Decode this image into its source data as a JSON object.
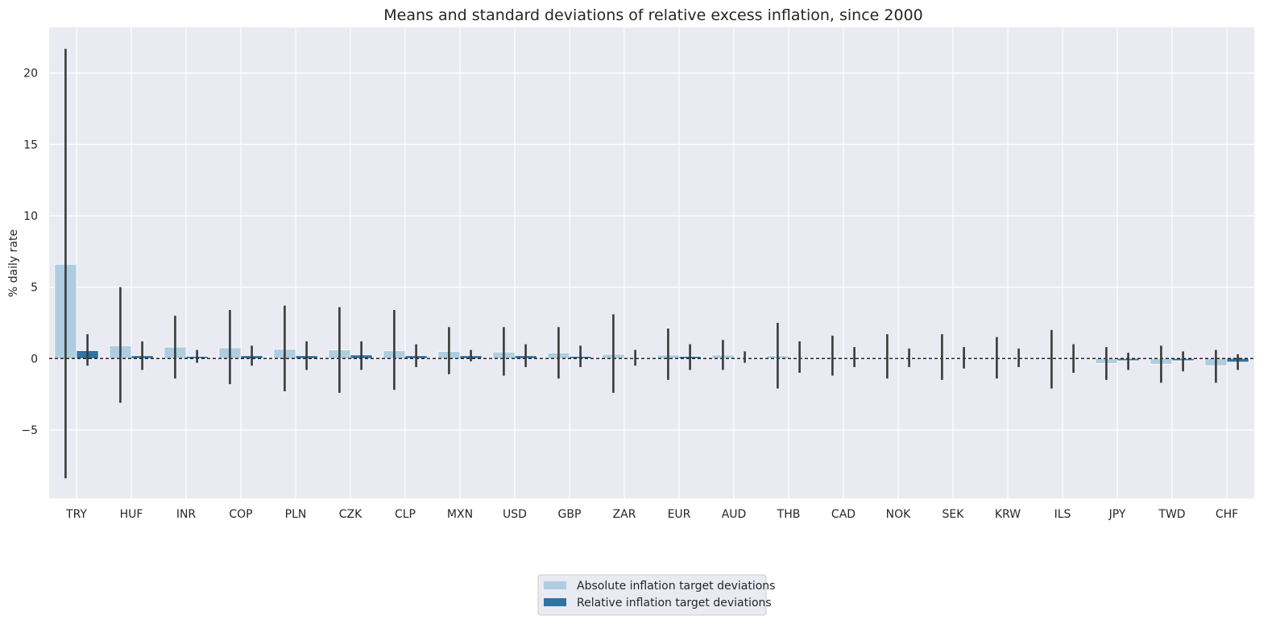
{
  "chart_data": {
    "type": "bar",
    "title": "Means and standard deviations of relative excess inflation, since 2000",
    "xlabel": "",
    "ylabel": "% daily rate",
    "ylim": [
      -9.8,
      23.2
    ],
    "yticks": [
      -5,
      0,
      5,
      10,
      15,
      20
    ],
    "ytick_labels": [
      "−5",
      "0",
      "5",
      "10",
      "15",
      "20"
    ],
    "grid": true,
    "legend_position": "bottom-center",
    "colors": {
      "absolute": "#aecde0",
      "relative": "#2f73a3",
      "errorbar": "#3a3a3a",
      "background": "#eaeaf2",
      "grid": "#ffffff"
    },
    "categories": [
      "TRY",
      "HUF",
      "INR",
      "COP",
      "PLN",
      "CZK",
      "CLP",
      "MXN",
      "USD",
      "GBP",
      "ZAR",
      "EUR",
      "AUD",
      "THB",
      "CAD",
      "NOK",
      "SEK",
      "KRW",
      "ILS",
      "JPY",
      "TWD",
      "CHF"
    ],
    "series": [
      {
        "name": "Absolute inflation target deviations",
        "values": [
          6.6,
          0.9,
          0.8,
          0.75,
          0.65,
          0.6,
          0.55,
          0.5,
          0.45,
          0.4,
          0.3,
          0.25,
          0.25,
          0.2,
          0.1,
          0.05,
          0.05,
          0.02,
          0.0,
          -0.35,
          -0.4,
          -0.5
        ],
        "err_low": [
          -8.4,
          -3.1,
          -1.4,
          -1.8,
          -2.3,
          -2.4,
          -2.2,
          -1.1,
          -1.2,
          -1.4,
          -2.4,
          -1.5,
          -0.8,
          -2.1,
          -1.2,
          -1.4,
          -1.5,
          -1.4,
          -2.1,
          -1.5,
          -1.7,
          -1.7
        ],
        "err_high": [
          21.7,
          5.0,
          3.0,
          3.4,
          3.7,
          3.6,
          3.4,
          2.2,
          2.2,
          2.2,
          3.1,
          2.1,
          1.3,
          2.5,
          1.6,
          1.7,
          1.7,
          1.5,
          2.0,
          0.8,
          0.9,
          0.6
        ]
      },
      {
        "name": "Relative inflation target deviations",
        "values": [
          0.55,
          0.2,
          0.15,
          0.2,
          0.2,
          0.25,
          0.2,
          0.2,
          0.2,
          0.15,
          0.05,
          0.15,
          0.05,
          0.05,
          0.05,
          0.05,
          0.0,
          0.0,
          0.0,
          -0.15,
          -0.15,
          -0.25
        ],
        "err_low": [
          -0.5,
          -0.8,
          -0.3,
          -0.5,
          -0.8,
          -0.8,
          -0.6,
          -0.2,
          -0.6,
          -0.6,
          -0.5,
          -0.8,
          -0.3,
          -1.0,
          -0.6,
          -0.6,
          -0.7,
          -0.6,
          -1.0,
          -0.8,
          -0.9,
          -0.8
        ],
        "err_high": [
          1.7,
          1.2,
          0.6,
          0.9,
          1.2,
          1.2,
          1.0,
          0.6,
          1.0,
          0.9,
          0.6,
          1.0,
          0.5,
          1.2,
          0.8,
          0.7,
          0.8,
          0.7,
          1.0,
          0.4,
          0.5,
          0.3
        ]
      }
    ]
  }
}
